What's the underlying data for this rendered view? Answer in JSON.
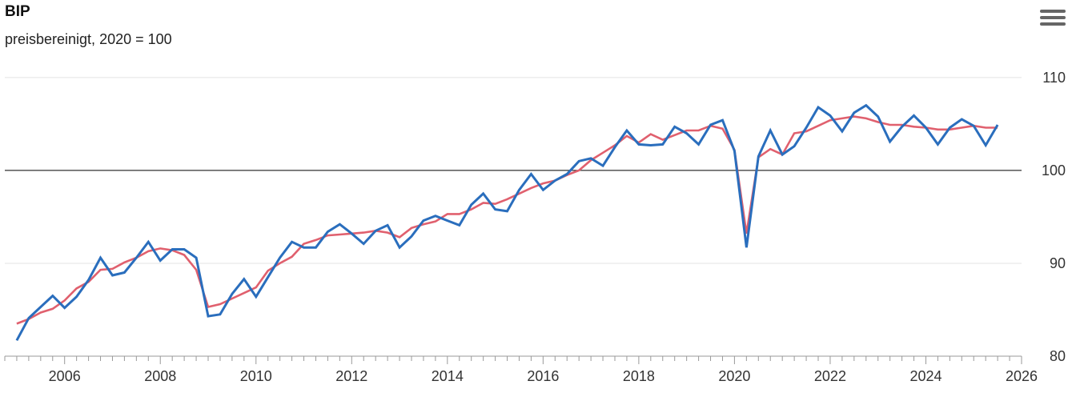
{
  "chart_data": {
    "type": "line",
    "title": "BIP",
    "subtitle": "preisbereinigt, 2020 = 100",
    "x_start": 2005.0,
    "x_step": 0.25,
    "xlim": [
      2004.75,
      2026.0
    ],
    "ylim": [
      80,
      113
    ],
    "x_ticks": [
      2006,
      2008,
      2010,
      2012,
      2014,
      2016,
      2018,
      2020,
      2022,
      2024,
      2026
    ],
    "y_ticks": [
      80,
      90,
      100,
      110
    ],
    "reference_line": 100,
    "grid": true,
    "y_axis_side": "right",
    "series": [
      {
        "color": "#2a6ebd",
        "values": [
          81.7,
          84.1,
          85.3,
          86.5,
          85.2,
          86.4,
          88.2,
          90.6,
          88.7,
          89.0,
          90.6,
          92.3,
          90.3,
          91.5,
          91.5,
          90.6,
          84.3,
          84.5,
          86.7,
          88.3,
          86.4,
          88.5,
          90.6,
          92.3,
          91.7,
          91.7,
          93.4,
          94.2,
          93.2,
          92.1,
          93.5,
          94.1,
          91.7,
          92.9,
          94.6,
          95.1,
          94.6,
          94.1,
          96.3,
          97.5,
          95.8,
          95.6,
          97.9,
          99.6,
          97.9,
          98.9,
          99.6,
          101.0,
          101.3,
          100.5,
          102.5,
          104.3,
          102.8,
          102.7,
          102.8,
          104.7,
          104.0,
          102.8,
          104.9,
          105.4,
          102.1,
          91.7,
          101.5,
          104.3,
          101.7,
          102.6,
          104.6,
          106.8,
          105.9,
          104.2,
          106.2,
          107.0,
          105.8,
          103.1,
          104.7,
          105.9,
          104.6,
          102.8,
          104.6,
          105.5,
          104.8,
          102.7,
          104.9
        ]
      },
      {
        "color": "#e0606e",
        "values": [
          83.5,
          84.0,
          84.7,
          85.1,
          86.0,
          87.3,
          88.0,
          89.3,
          89.4,
          90.1,
          90.6,
          91.3,
          91.6,
          91.4,
          90.9,
          89.3,
          85.3,
          85.6,
          86.2,
          86.8,
          87.4,
          89.2,
          90.0,
          90.7,
          92.1,
          92.5,
          93.0,
          93.1,
          93.2,
          93.3,
          93.5,
          93.3,
          92.8,
          93.8,
          94.2,
          94.5,
          95.3,
          95.3,
          95.8,
          96.5,
          96.4,
          96.9,
          97.5,
          98.1,
          98.6,
          98.9,
          99.5,
          100.0,
          101.1,
          101.9,
          102.7,
          103.7,
          103.0,
          103.9,
          103.3,
          103.8,
          104.3,
          104.3,
          104.8,
          104.5,
          102.2,
          93.2,
          101.4,
          102.3,
          101.7,
          104.0,
          104.2,
          104.8,
          105.4,
          105.6,
          105.8,
          105.6,
          105.2,
          104.9,
          104.9,
          104.7,
          104.6,
          104.4,
          104.4,
          104.6,
          104.8,
          104.6,
          104.6
        ]
      }
    ]
  }
}
